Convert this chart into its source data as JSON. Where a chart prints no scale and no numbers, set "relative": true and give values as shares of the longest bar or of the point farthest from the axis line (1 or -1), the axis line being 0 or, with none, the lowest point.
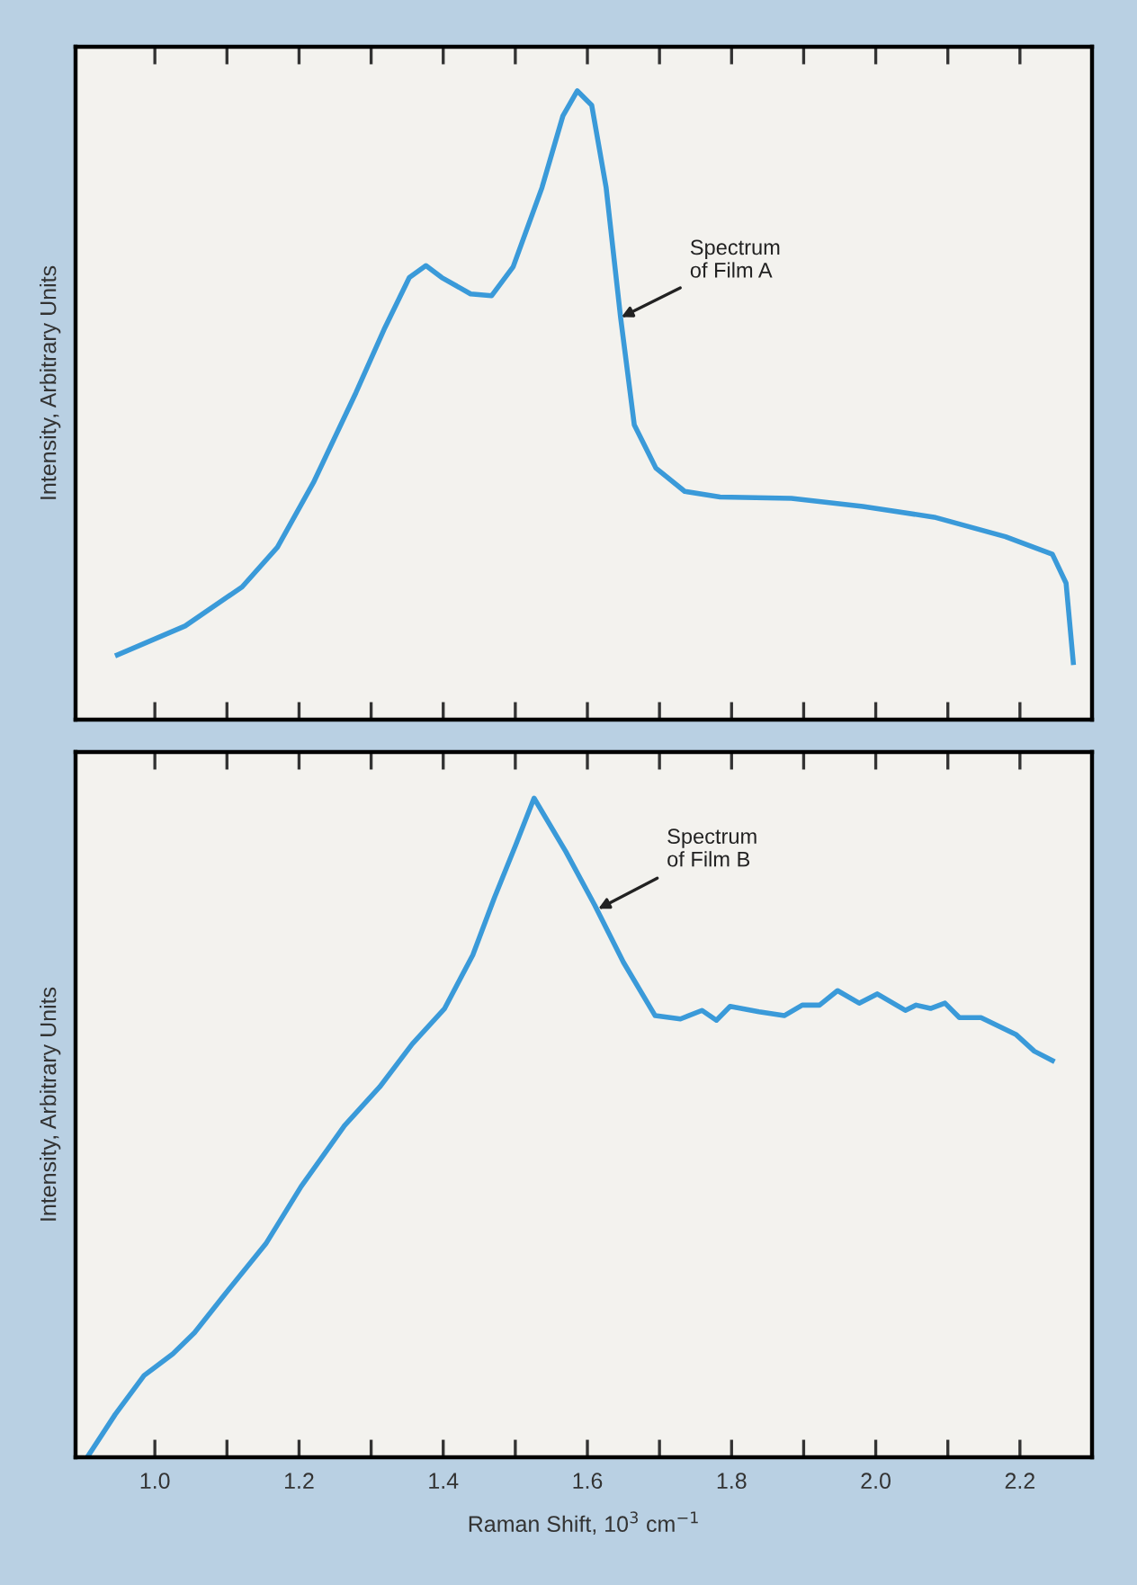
{
  "chart_data": [
    {
      "type": "line",
      "relative": true,
      "ylabel": "Intensity, Arbitrary Units",
      "xlim": [
        0.89,
        2.3
      ],
      "tick_labels": false,
      "xticks": [
        {
          "value": 1,
          "label": null
        },
        {
          "value": 1.1,
          "label": null
        },
        {
          "value": 1.2,
          "label": null
        },
        {
          "value": 1.3,
          "label": null
        },
        {
          "value": 1.4,
          "label": null
        },
        {
          "value": 1.5,
          "label": null
        },
        {
          "value": 1.6,
          "label": null
        },
        {
          "value": 1.7,
          "label": null
        },
        {
          "value": 1.8,
          "label": null
        },
        {
          "value": 1.9,
          "label": null
        },
        {
          "value": 2,
          "label": null
        },
        {
          "value": 2.1,
          "label": null
        },
        {
          "value": 2.2,
          "label": null
        }
      ],
      "annotations": [
        {
          "text": "Spectrum\nof Film A",
          "x": 1.647,
          "y": 0.64
        }
      ],
      "series": [
        {
          "color": "#3a9ad9",
          "x": [
            0.948,
            1.042,
            1.121,
            1.17,
            1.22,
            1.279,
            1.319,
            1.353,
            1.376,
            1.398,
            1.438,
            1.467,
            1.497,
            1.537,
            1.566,
            1.586,
            1.606,
            1.626,
            1.646,
            1.665,
            1.695,
            1.735,
            1.784,
            1.883,
            1.982,
            2.081,
            2.18,
            2.245,
            2.264,
            2.274
          ],
          "values": [
            0.103,
            0.149,
            0.211,
            0.274,
            0.377,
            0.52,
            0.623,
            0.703,
            0.722,
            0.703,
            0.677,
            0.674,
            0.72,
            0.846,
            0.96,
            1.0,
            0.977,
            0.846,
            0.64,
            0.469,
            0.4,
            0.363,
            0.354,
            0.352,
            0.339,
            0.322,
            0.291,
            0.263,
            0.217,
            0.091
          ]
        }
      ]
    },
    {
      "type": "line",
      "relative": true,
      "ylabel": "Intensity, Arbitrary Units",
      "xlabel": "Raman Shift, 10$^{3}$ cm$^{−1}$",
      "xlim": [
        0.89,
        2.3
      ],
      "tick_labels": "x",
      "xticks": [
        {
          "value": 1,
          "label": "1.0"
        },
        {
          "value": 1.1,
          "label": null
        },
        1.2,
        {
          "value": 1.3,
          "label": null
        },
        1.4,
        {
          "value": 1.5,
          "label": null
        },
        1.6,
        {
          "value": 1.7,
          "label": null
        },
        1.8,
        {
          "value": 1.9,
          "label": null
        },
        {
          "value": 2,
          "label": "2.0"
        },
        {
          "value": 2.1,
          "label": null
        },
        2.2
      ],
      "annotations": [
        {
          "text": "Spectrum\nof Film B",
          "x": 1.615,
          "y": 0.832
        }
      ],
      "series": [
        {
          "color": "#3a9ad9",
          "x": [
            0.908,
            0.945,
            0.985,
            1.025,
            1.055,
            1.094,
            1.154,
            1.203,
            1.263,
            1.312,
            1.357,
            1.402,
            1.441,
            1.471,
            1.501,
            1.526,
            1.57,
            1.61,
            1.65,
            1.694,
            1.729,
            1.759,
            1.779,
            1.798,
            1.838,
            1.873,
            1.898,
            1.922,
            1.947,
            1.977,
            2.002,
            2.041,
            2.056,
            2.076,
            2.096,
            2.116,
            2.146,
            2.195,
            2.22,
            2.245
          ],
          "values": [
            0.003,
            0.065,
            0.124,
            0.157,
            0.189,
            0.243,
            0.324,
            0.411,
            0.503,
            0.562,
            0.627,
            0.681,
            0.762,
            0.849,
            0.93,
            1.0,
            0.919,
            0.838,
            0.751,
            0.67,
            0.665,
            0.678,
            0.663,
            0.684,
            0.676,
            0.67,
            0.686,
            0.686,
            0.708,
            0.689,
            0.703,
            0.678,
            0.686,
            0.681,
            0.689,
            0.667,
            0.667,
            0.641,
            0.616,
            0.602
          ]
        }
      ]
    }
  ]
}
